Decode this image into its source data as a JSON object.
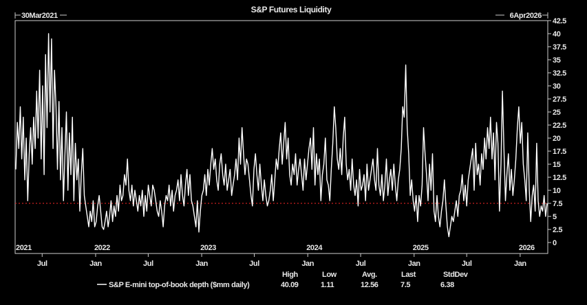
{
  "chart_data": {
    "type": "line",
    "title": "S&P Futures Liquidity",
    "start_label": "30Mar2021",
    "end_label": "6Apr2026",
    "start_date": "2021-03-30",
    "end_date": "2026-04-06",
    "ylim": [
      -2.1,
      42.5
    ],
    "y_axis_position": "right",
    "yticks": [
      0,
      2.5,
      5,
      7.5,
      10,
      12.5,
      15,
      17.5,
      20,
      22.5,
      25,
      27.5,
      30,
      32.5,
      35,
      37.5,
      40,
      42.5
    ],
    "xticks": [
      {
        "date": "2021-07-01",
        "label": "Jul"
      },
      {
        "date": "2022-01-01",
        "label": "Jan"
      },
      {
        "date": "2022-07-01",
        "label": "Jul"
      },
      {
        "date": "2023-01-01",
        "label": "Jan"
      },
      {
        "date": "2023-07-01",
        "label": "Jul"
      },
      {
        "date": "2024-01-01",
        "label": "Jan"
      },
      {
        "date": "2024-07-01",
        "label": "Jul"
      },
      {
        "date": "2025-01-01",
        "label": "Jan"
      },
      {
        "date": "2025-07-01",
        "label": "Jul"
      },
      {
        "date": "2026-01-01",
        "label": "Jan"
      }
    ],
    "year_labels": [
      {
        "date": "2021-03-30",
        "label": "2021"
      },
      {
        "date": "2022-01-01",
        "label": "2022"
      },
      {
        "date": "2023-01-01",
        "label": "2023"
      },
      {
        "date": "2024-01-01",
        "label": "2024"
      },
      {
        "date": "2025-01-01",
        "label": "2025"
      },
      {
        "date": "2026-01-01",
        "label": "2026"
      }
    ],
    "reference_line": {
      "value": 7.5,
      "color": "#cc2222",
      "style": "dashed"
    },
    "grid": false,
    "legend_position": "bottom",
    "series": [
      {
        "name": "S&P E-mini top-of-book depth ($mm daily)",
        "color": "#ffffff",
        "values": [
          14,
          23,
          18,
          26,
          16,
          24,
          12,
          20,
          8,
          17,
          22,
          15,
          24,
          18,
          29,
          20,
          33,
          16,
          30,
          13,
          36,
          22,
          40,
          25,
          39,
          18,
          33,
          26,
          14,
          27,
          12,
          22,
          8,
          17,
          25,
          10,
          21,
          13,
          24,
          8,
          19,
          12,
          16,
          6,
          13,
          18,
          9,
          7,
          5,
          3,
          6,
          4,
          8,
          3,
          4,
          7,
          9,
          6,
          3,
          2.5,
          4,
          6,
          3,
          5,
          8,
          4,
          7,
          5,
          9,
          6,
          11,
          8,
          9,
          13,
          11,
          16,
          10,
          8,
          11,
          7,
          10,
          8,
          6,
          9,
          7,
          10,
          5,
          9,
          6,
          11,
          9,
          7,
          11,
          10,
          8,
          6,
          5,
          8,
          6,
          3,
          7,
          9,
          8,
          11,
          7,
          10,
          6,
          9,
          10,
          12,
          8,
          13,
          9,
          7,
          11,
          14,
          9,
          13,
          8,
          7,
          5,
          3,
          8,
          2,
          6,
          9,
          10,
          13,
          9,
          14,
          11,
          15,
          18,
          14,
          16,
          12,
          10,
          15,
          17,
          13,
          11,
          15,
          10,
          12,
          14,
          9,
          11,
          13,
          16,
          12,
          20,
          15,
          22,
          17,
          13,
          16,
          15,
          12,
          9,
          7,
          14,
          17,
          13,
          10,
          15,
          11,
          8,
          12,
          9,
          7,
          8,
          10,
          13,
          8,
          12,
          16,
          14,
          18,
          21,
          15,
          19,
          23,
          16,
          20,
          13,
          11,
          15,
          13,
          17,
          11,
          14,
          16,
          13,
          10,
          16,
          12,
          15,
          18,
          20,
          14,
          22,
          11,
          17,
          13,
          16,
          8,
          13,
          15,
          20,
          12,
          11,
          8,
          14,
          19,
          26,
          22,
          16,
          14,
          18,
          13,
          20,
          24,
          15,
          12,
          14,
          10,
          16,
          11,
          9,
          12,
          7,
          14,
          10,
          11,
          13,
          8,
          15,
          10,
          12,
          14,
          16,
          12,
          10,
          18,
          11,
          9,
          13,
          8,
          11,
          16,
          9,
          12,
          14,
          10,
          15,
          11,
          8,
          12,
          14,
          18,
          26,
          24,
          34,
          22,
          17,
          9,
          12,
          8,
          6,
          9,
          4,
          9,
          7,
          11,
          22,
          17,
          13,
          8,
          15,
          10,
          17,
          6,
          4,
          9,
          5,
          3,
          6,
          8,
          12,
          7,
          3,
          1.11,
          3,
          5,
          4,
          6,
          8,
          5,
          9,
          10,
          13,
          8,
          11,
          7,
          12,
          14,
          16,
          18,
          10,
          19,
          13,
          15,
          11,
          17,
          14,
          20,
          16,
          22,
          18,
          24,
          16,
          21,
          12,
          23,
          19,
          6,
          15,
          29,
          18,
          8,
          13,
          17,
          10,
          14,
          9,
          12,
          16,
          22,
          26,
          19,
          23,
          15,
          12,
          8,
          21,
          10,
          4,
          9,
          11,
          6,
          19,
          8,
          5,
          7,
          6,
          9,
          5,
          7.5
        ]
      }
    ],
    "stats": {
      "headers": [
        "High",
        "Low",
        "Avg.",
        "Last",
        "StdDev"
      ],
      "values": [
        "40.09",
        "1.11",
        "12.56",
        "7.5",
        "6.38"
      ]
    }
  }
}
